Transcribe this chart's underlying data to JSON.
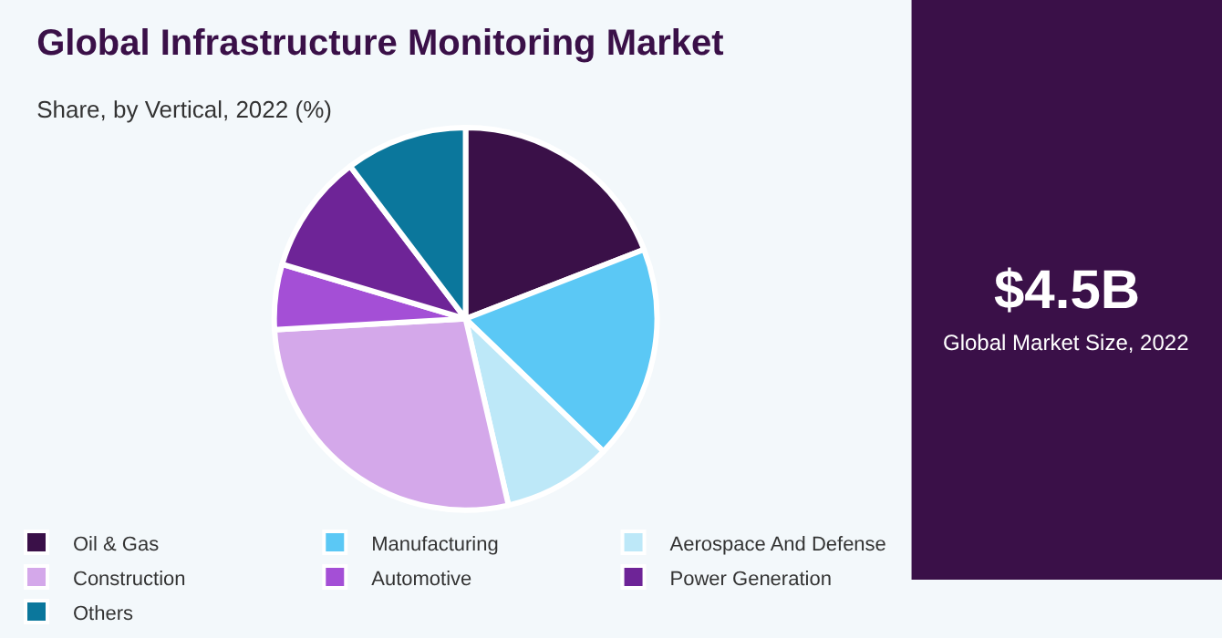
{
  "chart_data": {
    "type": "pie",
    "title": "Global Infrastructure Monitoring Market",
    "subtitle": "Share, by Vertical, 2022 (%)",
    "categories": [
      "Oil & Gas",
      "Manufacturing",
      "Aerospace And Defense",
      "Construction",
      "Automotive",
      "Power Generation",
      "Others"
    ],
    "values": [
      19.1,
      18.1,
      9.2,
      27.7,
      5.5,
      10.1,
      10.3
    ],
    "colors": [
      "#3a1048",
      "#5bc8f5",
      "#bde8f8",
      "#d4a8ea",
      "#a44fd6",
      "#6e2497",
      "#0b779c"
    ],
    "legend": "bottom",
    "annotations": [
      "$4.5B",
      "Global Market Size, 2022"
    ]
  }
}
